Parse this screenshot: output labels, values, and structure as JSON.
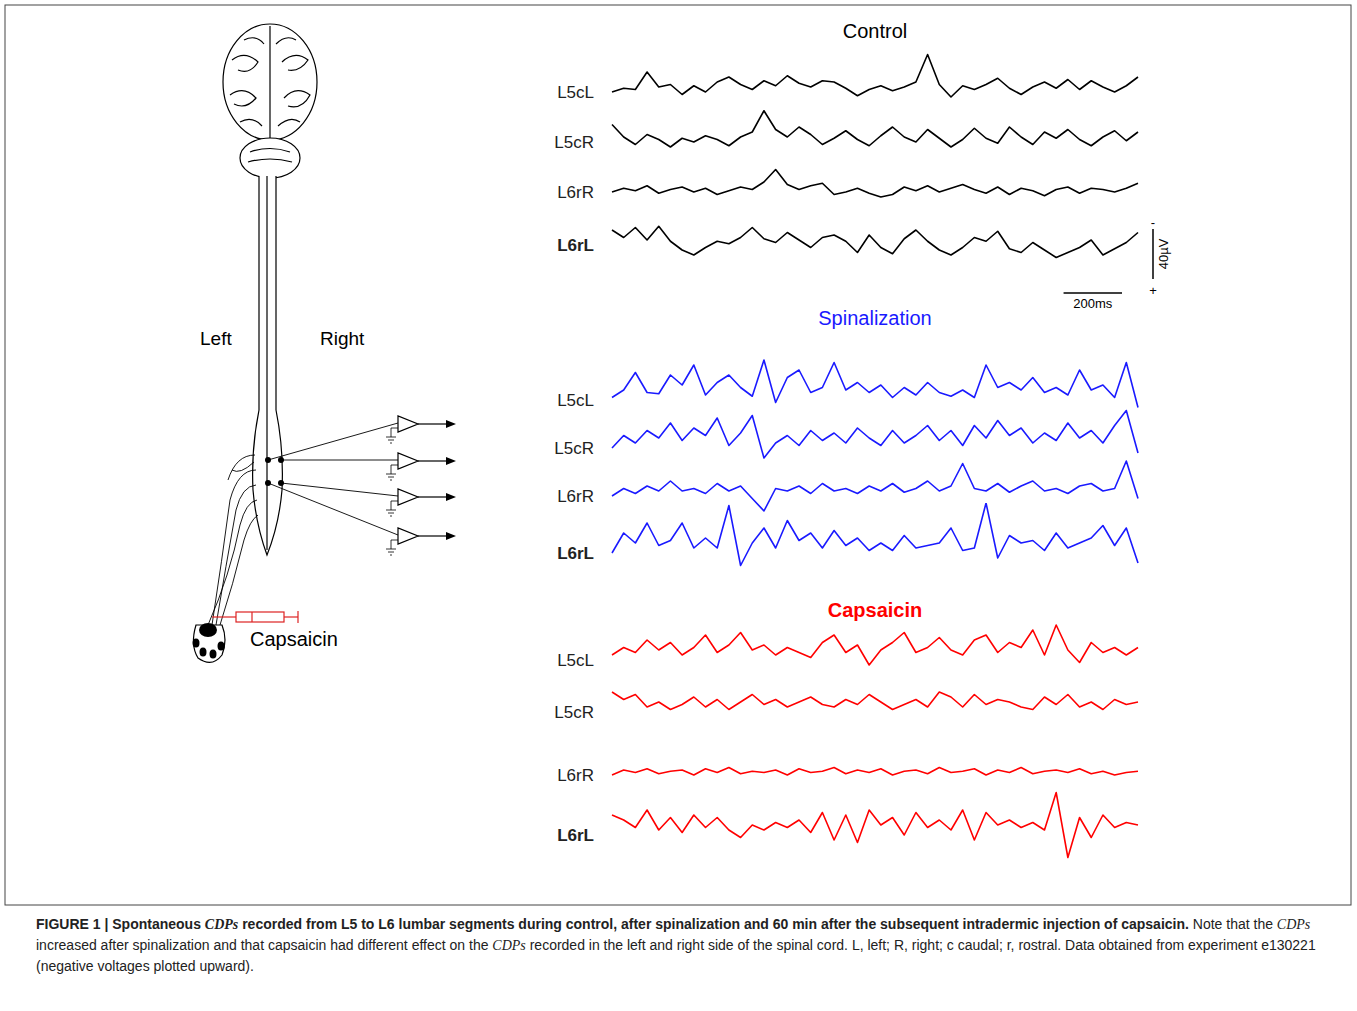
{
  "caption": [
    {
      "text": "FIGURE 1 | Spontaneous ",
      "style": "bold"
    },
    {
      "text": "CDPs",
      "style": "bold-italic"
    },
    {
      "text": " recorded from L5 to L6 lumbar segments during control, after spinalization and 60 min after the subsequent intradermic injection of capsaicin.",
      "style": "bold"
    },
    {
      "text": " Note that the ",
      "style": "normal"
    },
    {
      "text": "CDPs",
      "style": "italic"
    },
    {
      "text": " increased after spinalization and that capsaicin had different effect on the ",
      "style": "normal"
    },
    {
      "text": "CDPs",
      "style": "italic"
    },
    {
      "text": " recorded in the left and right side of the spinal cord. L, left; R, right; c caudal; r, rostral. Data obtained from experiment e130221 (negative voltages plotted upward).",
      "style": "normal"
    }
  ],
  "diagram": {
    "left_label": "Left",
    "right_label": "Right",
    "injection_label": "Capsaicin"
  },
  "scale_bar": {
    "voltage": 40,
    "voltage_label": "40µV",
    "time": 200,
    "time_label": "200ms",
    "negative_sign": "-",
    "positive_sign": "+"
  },
  "chart_data": [
    {
      "type": "line",
      "title": "Control",
      "color": "#000000",
      "grid": false,
      "tick_labels": false,
      "xlim": [
        0,
        1800
      ],
      "ylim": [
        -40,
        40
      ],
      "x": [
        0,
        40,
        80,
        120,
        160,
        200,
        240,
        280,
        320,
        360,
        400,
        440,
        480,
        520,
        560,
        600,
        640,
        680,
        720,
        760,
        800,
        840,
        880,
        920,
        960,
        1000,
        1040,
        1080,
        1120,
        1160,
        1200,
        1240,
        1280,
        1320,
        1360,
        1400,
        1440,
        1480,
        1520,
        1560,
        1600,
        1640,
        1680,
        1720,
        1760,
        1800
      ],
      "series": [
        {
          "name": "L5cL",
          "values": [
            0,
            -3,
            -2,
            -16,
            -4,
            -6,
            2,
            -5,
            0,
            -8,
            -12,
            -6,
            -2,
            -9,
            -5,
            -13,
            -7,
            -4,
            -9,
            -8,
            -3,
            3,
            -2,
            -5,
            -1,
            -4,
            -8,
            -30,
            -6,
            4,
            -5,
            -2,
            -6,
            -11,
            -3,
            2,
            -4,
            -8,
            -3,
            -10,
            -2,
            -9,
            -4,
            0,
            -5,
            -12
          ]
        },
        {
          "name": "L5cR",
          "values": [
            -14,
            -4,
            2,
            -6,
            -2,
            4,
            -3,
            0,
            -5,
            -2,
            3,
            -4,
            -8,
            -25,
            -10,
            -4,
            -12,
            -6,
            2,
            -3,
            -9,
            -2,
            3,
            -5,
            -12,
            -4,
            0,
            -10,
            -3,
            4,
            -2,
            -11,
            -3,
            1,
            -12,
            -4,
            2,
            -8,
            -3,
            -10,
            -2,
            3,
            -4,
            -9,
            -1,
            -8
          ]
        },
        {
          "name": "L6rR",
          "values": [
            0,
            -3,
            -1,
            -5,
            1,
            -2,
            -4,
            0,
            -3,
            2,
            -1,
            -4,
            -2,
            -8,
            -18,
            -6,
            -2,
            -5,
            -7,
            2,
            0,
            -3,
            1,
            4,
            2,
            -4,
            -1,
            -5,
            0,
            -3,
            -6,
            -2,
            1,
            -4,
            2,
            -3,
            -1,
            3,
            -2,
            -4,
            1,
            -3,
            -2,
            0,
            -3,
            -7
          ]
        },
        {
          "name": "L6rL",
          "values": [
            -12,
            -6,
            -14,
            -4,
            -15,
            -3,
            4,
            8,
            2,
            -3,
            -1,
            -6,
            -14,
            -5,
            -2,
            -10,
            -4,
            2,
            -6,
            -8,
            -3,
            6,
            -8,
            2,
            7,
            -5,
            -12,
            -3,
            4,
            8,
            2,
            -6,
            -3,
            -11,
            3,
            6,
            -2,
            4,
            10,
            6,
            2,
            -4,
            8,
            3,
            -2,
            -10
          ]
        }
      ]
    },
    {
      "type": "line",
      "title": "Spinalization",
      "color": "#1a1aff",
      "grid": false,
      "tick_labels": false,
      "xlim": [
        0,
        1800
      ],
      "ylim": [
        -40,
        40
      ],
      "x": [
        0,
        40,
        80,
        120,
        160,
        200,
        240,
        280,
        320,
        360,
        400,
        440,
        480,
        520,
        560,
        600,
        640,
        680,
        720,
        760,
        800,
        840,
        880,
        920,
        960,
        1000,
        1040,
        1080,
        1120,
        1160,
        1200,
        1240,
        1280,
        1320,
        1360,
        1400,
        1440,
        1480,
        1520,
        1560,
        1600,
        1640,
        1680,
        1720,
        1760,
        1800
      ],
      "series": [
        {
          "name": "L5cL",
          "values": [
            -2,
            -8,
            -22,
            -6,
            -5,
            -20,
            -12,
            -28,
            -4,
            -14,
            -20,
            -10,
            -3,
            -32,
            2,
            -18,
            -24,
            -6,
            -10,
            -30,
            -8,
            -14,
            -6,
            -12,
            -2,
            -10,
            -4,
            -14,
            -6,
            -3,
            -8,
            -2,
            -28,
            -10,
            -14,
            -8,
            -18,
            -6,
            -10,
            -4,
            -24,
            -8,
            -12,
            -2,
            -30,
            6
          ]
        },
        {
          "name": "L5cR",
          "values": [
            0,
            -10,
            -4,
            -14,
            -8,
            -20,
            -6,
            -16,
            -10,
            -24,
            -2,
            -12,
            -26,
            8,
            -4,
            -10,
            -2,
            -14,
            -6,
            -12,
            -4,
            -16,
            -8,
            -2,
            -14,
            -4,
            -10,
            -18,
            -6,
            -14,
            -2,
            -18,
            -8,
            -22,
            -10,
            -16,
            -4,
            -12,
            -6,
            -20,
            -8,
            -14,
            -4,
            -18,
            -30,
            4
          ]
        },
        {
          "name": "L6rR",
          "values": [
            0,
            -6,
            -2,
            -8,
            -4,
            -12,
            -4,
            -6,
            -2,
            -10,
            -4,
            -8,
            2,
            12,
            -6,
            -4,
            -8,
            -2,
            -10,
            -4,
            -6,
            -2,
            -8,
            -4,
            -10,
            -3,
            -6,
            -12,
            -4,
            -8,
            -26,
            -6,
            -4,
            -10,
            -3,
            -8,
            -12,
            -4,
            -6,
            -2,
            -8,
            -10,
            -4,
            -6,
            -28,
            2
          ]
        },
        {
          "name": "L6rL",
          "values": [
            0,
            -16,
            -8,
            -24,
            -6,
            -10,
            -24,
            -4,
            -12,
            -4,
            -38,
            10,
            -8,
            -20,
            -4,
            -26,
            -10,
            -16,
            -4,
            -18,
            -6,
            -12,
            -2,
            -8,
            -2,
            -14,
            -4,
            -6,
            -8,
            -20,
            -2,
            -4,
            -40,
            4,
            -14,
            -8,
            -10,
            -2,
            -16,
            -4,
            -8,
            -12,
            -22,
            -6,
            -20,
            8
          ]
        }
      ]
    },
    {
      "type": "line",
      "title": "Capsaicin",
      "color": "#ff0000",
      "grid": false,
      "tick_labels": false,
      "xlim": [
        0,
        1800
      ],
      "ylim": [
        -40,
        40
      ],
      "x": [
        0,
        40,
        80,
        120,
        160,
        200,
        240,
        280,
        320,
        360,
        400,
        440,
        480,
        520,
        560,
        600,
        640,
        680,
        720,
        760,
        800,
        840,
        880,
        920,
        960,
        1000,
        1040,
        1080,
        1120,
        1160,
        1200,
        1240,
        1280,
        1320,
        1360,
        1400,
        1440,
        1480,
        1520,
        1560,
        1600,
        1640,
        1680,
        1720,
        1760,
        1800
      ],
      "series": [
        {
          "name": "L5cL",
          "values": [
            -4,
            -10,
            -6,
            -16,
            -8,
            -14,
            -4,
            -10,
            -20,
            -6,
            -12,
            -22,
            -8,
            -12,
            -4,
            -10,
            -6,
            -2,
            -14,
            -20,
            -6,
            -12,
            4,
            -8,
            -14,
            -22,
            -6,
            -10,
            -18,
            -8,
            -4,
            -16,
            -20,
            -6,
            -14,
            -10,
            -24,
            -4,
            -28,
            -8,
            2,
            -14,
            -6,
            -10,
            -4,
            -10
          ]
        },
        {
          "name": "L5cR",
          "values": [
            -16,
            -10,
            -14,
            -4,
            -8,
            -2,
            -6,
            -12,
            -4,
            -10,
            -2,
            -8,
            -14,
            -6,
            -10,
            -4,
            -8,
            -12,
            -6,
            -4,
            -10,
            -6,
            -14,
            -8,
            -2,
            -6,
            -10,
            -4,
            -16,
            -12,
            -4,
            -14,
            -6,
            -10,
            -8,
            -4,
            -2,
            -12,
            -6,
            -14,
            -4,
            -8,
            -2,
            -10,
            -6,
            -8
          ]
        },
        {
          "name": "L6rR",
          "values": [
            0,
            -4,
            -2,
            -5,
            -1,
            -3,
            -4,
            0,
            -5,
            -2,
            -6,
            -1,
            -3,
            -2,
            -4,
            0,
            -5,
            -2,
            -3,
            -6,
            -1,
            -4,
            -2,
            -5,
            0,
            -3,
            -4,
            -1,
            -6,
            -2,
            -3,
            -5,
            0,
            -4,
            -2,
            -6,
            -1,
            -3,
            -4,
            -2,
            -5,
            -1,
            -3,
            0,
            -2,
            -3
          ]
        },
        {
          "name": "L6rL",
          "values": [
            -16,
            -12,
            -6,
            -20,
            -4,
            -14,
            -2,
            -16,
            -6,
            -14,
            -4,
            2,
            -8,
            -4,
            -10,
            -6,
            -12,
            -2,
            -18,
            4,
            -16,
            6,
            -20,
            -8,
            -14,
            0,
            -18,
            -6,
            -12,
            -4,
            -20,
            4,
            -18,
            -8,
            -12,
            -6,
            -10,
            -4,
            -34,
            18,
            -14,
            2,
            -16,
            -6,
            -10,
            -8
          ]
        }
      ]
    }
  ]
}
